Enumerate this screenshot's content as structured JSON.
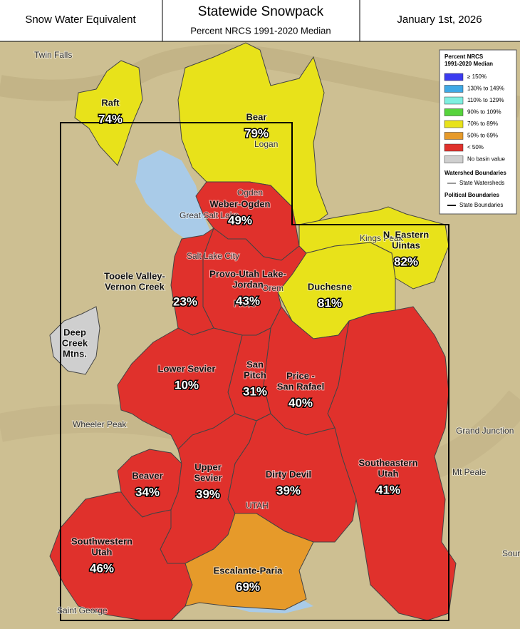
{
  "header": {
    "left": "Snow Water Equivalent",
    "title": "Statewide Snowpack",
    "subtitle": "Percent NRCS 1991-2020 Median",
    "date": "January 1st, 2026"
  },
  "legend": {
    "title": [
      "Percent NRCS",
      "1991-2020 Median"
    ],
    "classes": [
      {
        "label": "≥ 150%",
        "color": "#3b3bf0"
      },
      {
        "label": "130% to 149%",
        "color": "#3fa9e6"
      },
      {
        "label": "110% to 129%",
        "color": "#7fefe0"
      },
      {
        "label": "90% to 109%",
        "color": "#56d43c"
      },
      {
        "label": "70% to 89%",
        "color": "#e8e21a"
      },
      {
        "label": "50% to 69%",
        "color": "#e69a2a"
      },
      {
        "label": "< 50%",
        "color": "#e0312c"
      },
      {
        "label": "No basin value",
        "color": "#cfcfcf"
      }
    ],
    "watershed_heading": "Watershed Boundaries",
    "watershed_item": "State Watersheds",
    "political_heading": "Political Boundaries",
    "political_item": "State Boundaries"
  },
  "basins": [
    {
      "name": [
        "Raft"
      ],
      "value": 74,
      "value_label": "74%",
      "color": "#e8e21a"
    },
    {
      "name": [
        "Bear"
      ],
      "value": 79,
      "value_label": "79%",
      "color": "#e8e21a"
    },
    {
      "name": [
        "Weber-Ogden"
      ],
      "value": 49,
      "value_label": "49%",
      "color": "#e0312c"
    },
    {
      "name": [
        "N. Eastern",
        "Uintas"
      ],
      "value": 82,
      "value_label": "82%",
      "color": "#e8e21a"
    },
    {
      "name": [
        "Duchesne"
      ],
      "value": 81,
      "value_label": "81%",
      "color": "#e8e21a"
    },
    {
      "name": [
        "Provo-Utah Lake-",
        "Jordan"
      ],
      "value": 43,
      "value_label": "43%",
      "color": "#e0312c"
    },
    {
      "name": [
        "Tooele Valley-",
        "Vernon Creek"
      ],
      "value": 23,
      "value_label": "23%",
      "color": "#e0312c"
    },
    {
      "name": [
        "Southeastern",
        "Utah"
      ],
      "value": 41,
      "value_label": "41%",
      "color": "#e0312c"
    },
    {
      "name": [
        "Price -",
        "San Rafael"
      ],
      "value": 40,
      "value_label": "40%",
      "color": "#e0312c"
    },
    {
      "name": [
        "San",
        "Pitch"
      ],
      "value": 31,
      "value_label": "31%",
      "color": "#e0312c"
    },
    {
      "name": [
        "Lower Sevier"
      ],
      "value": 10,
      "value_label": "10%",
      "color": "#e0312c"
    },
    {
      "name": [
        "Beaver"
      ],
      "value": 34,
      "value_label": "34%",
      "color": "#e0312c"
    },
    {
      "name": [
        "Upper",
        "Sevier"
      ],
      "value": 39,
      "value_label": "39%",
      "color": "#e0312c"
    },
    {
      "name": [
        "Dirty Devil"
      ],
      "value": 39,
      "value_label": "39%",
      "color": "#e0312c"
    },
    {
      "name": [
        "Southwestern",
        "Utah"
      ],
      "value": 46,
      "value_label": "46%",
      "color": "#e0312c"
    },
    {
      "name": [
        "Escalante-Paria"
      ],
      "value": 69,
      "value_label": "69%",
      "color": "#e69a2a"
    },
    {
      "name": [
        "Deep",
        "Creek",
        "Mtns."
      ],
      "value": null,
      "value_label": null,
      "color": "#cfcfcf"
    }
  ],
  "places": [
    "Twin Falls",
    "Logan",
    "Ogden",
    "Great Salt Lake",
    "Salt Lake City",
    "Orem",
    "Provo",
    "Kings Peak",
    "Wheeler Peak",
    "Grand Junction",
    "Mt Peale",
    "Saint George",
    "UTAH",
    "Source"
  ]
}
